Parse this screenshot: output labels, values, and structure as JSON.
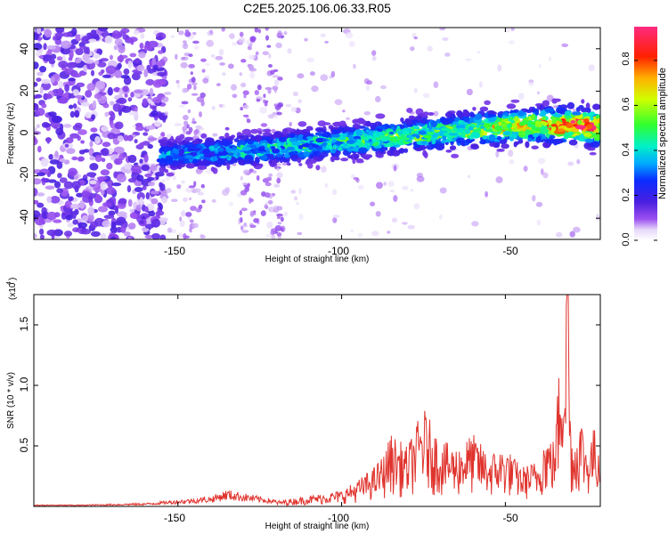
{
  "title": "C2E5.2025.106.06.33.R05",
  "colors": {
    "snr_line": "#e0342e",
    "spectrum_colormap": [
      "#ffffff",
      "#dcc8f4",
      "#8a2be2",
      "#3a1fd6",
      "#1040ff",
      "#00d8ff",
      "#36ff5a",
      "#ffff00",
      "#ffa000",
      "#ff0000",
      "#ff2a80"
    ]
  },
  "chart_data": [
    {
      "type": "heatmap",
      "title": "C2E5.2025.106.06.33.R05",
      "xlabel": "Height of straight line (km)",
      "ylabel": "Frequency (Hz)",
      "xlim": [
        -194,
        -21
      ],
      "ylim": [
        -50,
        50
      ],
      "xticks": [
        -150,
        -100,
        -50
      ],
      "yticks": [
        -40,
        -20,
        0,
        20,
        40
      ],
      "colorbar": {
        "label": "Normalized spectral amplitude",
        "range": [
          0,
          0.95
        ],
        "ticks": [
          0.0,
          0.2,
          0.4,
          0.6,
          0.8
        ]
      },
      "ridge": {
        "x": [
          -155,
          -140,
          -120,
          -100,
          -80,
          -60,
          -40,
          -30,
          -22
        ],
        "frequency_hz": [
          -10,
          -9,
          -7,
          -4,
          -1,
          2,
          4,
          4,
          3
        ],
        "peak_amplitude": [
          0.3,
          0.35,
          0.4,
          0.45,
          0.5,
          0.55,
          0.7,
          0.95,
          0.8
        ]
      }
    },
    {
      "type": "line",
      "xlabel": "Height of straight line (km)",
      "ylabel": "SNR (10 * v/v)",
      "yscale_label": "(x10",
      "yscale_exp": "4",
      "xlim": [
        -194,
        -21
      ],
      "ylim": [
        0,
        1.75
      ],
      "xticks": [
        -150,
        -100,
        -50
      ],
      "yticks": [
        0.5,
        1.0,
        1.5
      ],
      "ytick_labels": [
        "0.5",
        "1.0",
        "1.5"
      ],
      "series": [
        {
          "x": [
            -194,
            -180,
            -170,
            -160,
            -150,
            -140,
            -135,
            -130,
            -120,
            -110,
            -100,
            -95,
            -90,
            -87,
            -85,
            -80,
            -75,
            -70,
            -65,
            -60,
            -55,
            -50,
            -45,
            -40,
            -38,
            -35,
            -33,
            -31,
            -30,
            -29,
            -27,
            -25,
            -23,
            -21
          ],
          "values": [
            0.01,
            0.01,
            0.015,
            0.02,
            0.04,
            0.06,
            0.1,
            0.08,
            0.04,
            0.08,
            0.12,
            0.2,
            0.3,
            0.4,
            0.55,
            0.45,
            0.75,
            0.5,
            0.45,
            0.55,
            0.4,
            0.45,
            0.3,
            0.35,
            0.55,
            0.5,
            1.3,
            1.75,
            0.6,
            0.5,
            0.7,
            0.45,
            0.6,
            0.5
          ]
        }
      ]
    }
  ],
  "axes": {
    "top": {
      "xtick_labels": [
        "-150",
        "-100",
        "-50"
      ],
      "ytick_labels": [
        "40",
        "20",
        "0",
        "-20",
        "-40"
      ],
      "cbar_tick_labels": [
        "0.0",
        "0.2",
        "0.4",
        "0.6",
        "0.8"
      ]
    },
    "bottom": {
      "xtick_labels": [
        "-150",
        "-100",
        "-50"
      ]
    }
  }
}
